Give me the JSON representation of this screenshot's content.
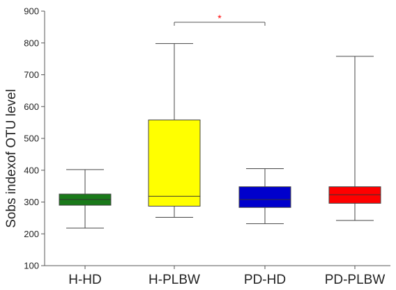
{
  "chart_data": {
    "type": "box",
    "title": "",
    "xlabel": "",
    "ylabel": "Sobs indexof OTU level",
    "ylim": [
      100,
      900
    ],
    "yticks": [
      100,
      200,
      300,
      400,
      500,
      600,
      700,
      800,
      900
    ],
    "grid": false,
    "categories": [
      "H-HD",
      "H-PLBW",
      "PD-HD",
      "PD-PLBW"
    ],
    "boxes": [
      {
        "category": "H-HD",
        "min": 218,
        "q1": 290,
        "median": 308,
        "q3": 325,
        "max": 402,
        "color": "#1a7a1a"
      },
      {
        "category": "H-PLBW",
        "min": 252,
        "q1": 287,
        "median": 318,
        "q3": 558,
        "max": 798,
        "color": "#ffff00"
      },
      {
        "category": "PD-HD",
        "min": 232,
        "q1": 283,
        "median": 308,
        "q3": 348,
        "max": 405,
        "color": "#0000cc"
      },
      {
        "category": "PD-PLBW",
        "min": 242,
        "q1": 296,
        "median": 323,
        "q3": 348,
        "max": 758,
        "color": "#ff0000"
      }
    ],
    "annotations": [
      {
        "from": "H-PLBW",
        "to": "PD-HD",
        "y": 865,
        "text": "*",
        "color": "#ff0000"
      }
    ]
  }
}
